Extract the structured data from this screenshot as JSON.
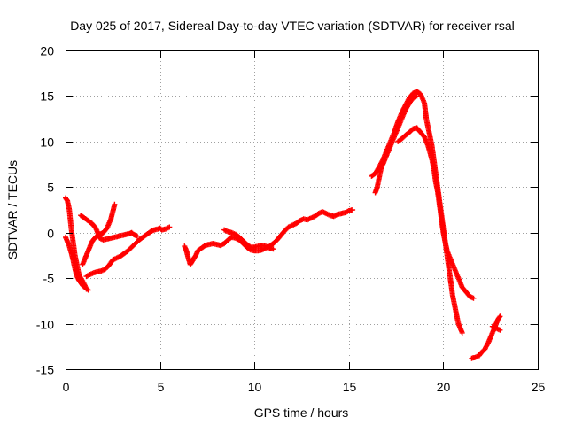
{
  "chart_data": {
    "type": "scatter",
    "title": "Day 025 of 2017, Sidereal Day-to-day VTEC variation (SDTVAR) for receiver rsal",
    "xlabel": "GPS time / hours",
    "ylabel": "SDTVAR / TECUs",
    "xlim": [
      0,
      25
    ],
    "ylim": [
      -15,
      20
    ],
    "xticks": [
      0,
      5,
      10,
      15,
      20,
      25
    ],
    "yticks": [
      -15,
      -10,
      -5,
      0,
      5,
      10,
      15,
      20
    ],
    "grid": true,
    "legend": "none",
    "marker": "plus",
    "color": "#ff0000",
    "series": [
      {
        "points": [
          [
            0.0,
            3.8
          ],
          [
            0.1,
            3.5
          ],
          [
            0.2,
            2.5
          ],
          [
            0.3,
            0.5
          ],
          [
            0.4,
            -1.0
          ],
          [
            0.5,
            -2.5
          ],
          [
            0.6,
            -3.5
          ],
          [
            0.7,
            -4.5
          ],
          [
            0.8,
            -5.0
          ],
          [
            0.9,
            -5.3
          ],
          [
            1.0,
            -5.7
          ],
          [
            1.1,
            -6.2
          ]
        ]
      },
      {
        "points": [
          [
            0.0,
            -0.5
          ],
          [
            0.1,
            -1.0
          ],
          [
            0.2,
            -1.5
          ],
          [
            0.3,
            -2.2
          ],
          [
            0.4,
            -3.0
          ],
          [
            0.5,
            -4.0
          ],
          [
            0.6,
            -4.8
          ],
          [
            0.7,
            -5.2
          ],
          [
            0.8,
            -5.5
          ],
          [
            0.9,
            -5.8
          ],
          [
            1.0,
            -6.0
          ],
          [
            1.1,
            -6.1
          ],
          [
            1.2,
            -6.3
          ]
        ]
      },
      {
        "points": [
          [
            0.9,
            -3.5
          ],
          [
            1.0,
            -3.0
          ],
          [
            1.1,
            -2.5
          ],
          [
            1.2,
            -2.0
          ],
          [
            1.3,
            -1.5
          ],
          [
            1.4,
            -1.0
          ],
          [
            1.5,
            -0.7
          ],
          [
            1.6,
            -0.5
          ],
          [
            1.7,
            -0.3
          ],
          [
            1.8,
            -0.2
          ],
          [
            1.9,
            -0.1
          ],
          [
            2.0,
            0.0
          ],
          [
            2.2,
            0.5
          ],
          [
            2.4,
            1.5
          ],
          [
            2.5,
            2.3
          ],
          [
            2.6,
            3.1
          ]
        ]
      },
      {
        "points": [
          [
            0.8,
            1.9
          ],
          [
            1.0,
            1.6
          ],
          [
            1.2,
            1.3
          ],
          [
            1.4,
            1.0
          ],
          [
            1.6,
            0.5
          ],
          [
            1.7,
            0.0
          ],
          [
            1.8,
            -0.6
          ],
          [
            2.0,
            -0.8
          ],
          [
            2.2,
            -0.7
          ],
          [
            2.4,
            -0.6
          ],
          [
            2.6,
            -0.5
          ],
          [
            2.8,
            -0.4
          ],
          [
            3.0,
            -0.3
          ],
          [
            3.2,
            -0.2
          ],
          [
            3.4,
            -0.1
          ],
          [
            3.5,
            0.0
          ],
          [
            3.6,
            -0.2
          ],
          [
            3.7,
            -0.3
          ],
          [
            3.8,
            -0.4
          ]
        ]
      },
      {
        "points": [
          [
            1.1,
            -4.8
          ],
          [
            1.3,
            -4.6
          ],
          [
            1.5,
            -4.4
          ],
          [
            1.7,
            -4.3
          ],
          [
            1.9,
            -4.2
          ],
          [
            2.1,
            -4.0
          ],
          [
            2.3,
            -3.6
          ],
          [
            2.5,
            -3.0
          ],
          [
            2.7,
            -2.8
          ],
          [
            2.9,
            -2.6
          ],
          [
            3.1,
            -2.3
          ],
          [
            3.3,
            -2.0
          ],
          [
            3.5,
            -1.6
          ],
          [
            3.7,
            -1.2
          ],
          [
            3.9,
            -0.8
          ],
          [
            4.1,
            -0.5
          ],
          [
            4.3,
            -0.2
          ],
          [
            4.5,
            0.1
          ],
          [
            4.7,
            0.3
          ],
          [
            4.9,
            0.4
          ],
          [
            5.0,
            0.5
          ],
          [
            5.1,
            0.3
          ],
          [
            5.3,
            0.4
          ],
          [
            5.5,
            0.6
          ]
        ]
      },
      {
        "points": [
          [
            6.3,
            -1.5
          ],
          [
            6.4,
            -2.0
          ],
          [
            6.5,
            -2.8
          ],
          [
            6.6,
            -3.5
          ],
          [
            6.7,
            -3.2
          ],
          [
            6.8,
            -2.8
          ],
          [
            6.9,
            -2.5
          ],
          [
            7.0,
            -2.0
          ],
          [
            7.2,
            -1.7
          ],
          [
            7.4,
            -1.4
          ],
          [
            7.6,
            -1.3
          ],
          [
            7.8,
            -1.2
          ],
          [
            8.0,
            -1.3
          ],
          [
            8.2,
            -1.4
          ],
          [
            8.4,
            -1.2
          ],
          [
            8.6,
            -0.8
          ],
          [
            8.8,
            -0.5
          ],
          [
            9.0,
            -0.6
          ],
          [
            9.2,
            -0.8
          ],
          [
            9.4,
            -1.2
          ],
          [
            9.6,
            -1.6
          ],
          [
            9.8,
            -1.9
          ],
          [
            10.0,
            -2.0
          ],
          [
            10.2,
            -2.0
          ],
          [
            10.4,
            -1.9
          ],
          [
            10.6,
            -1.7
          ],
          [
            10.8,
            -1.5
          ],
          [
            11.0,
            -1.2
          ],
          [
            11.2,
            -0.8
          ],
          [
            11.4,
            -0.3
          ],
          [
            11.6,
            0.2
          ],
          [
            11.8,
            0.6
          ],
          [
            12.0,
            0.8
          ],
          [
            12.2,
            1.0
          ],
          [
            12.4,
            1.3
          ],
          [
            12.6,
            1.5
          ],
          [
            12.8,
            1.4
          ],
          [
            13.0,
            1.6
          ],
          [
            13.2,
            1.8
          ],
          [
            13.4,
            2.1
          ],
          [
            13.6,
            2.3
          ],
          [
            13.8,
            2.1
          ],
          [
            14.0,
            1.9
          ],
          [
            14.2,
            1.8
          ],
          [
            14.4,
            2.0
          ],
          [
            14.6,
            2.1
          ],
          [
            14.8,
            2.2
          ],
          [
            15.0,
            2.4
          ],
          [
            15.2,
            2.5
          ]
        ]
      },
      {
        "points": [
          [
            8.4,
            0.3
          ],
          [
            8.6,
            0.1
          ],
          [
            8.8,
            0.0
          ],
          [
            9.0,
            -0.2
          ],
          [
            9.2,
            -0.5
          ],
          [
            9.4,
            -0.9
          ],
          [
            9.6,
            -1.3
          ],
          [
            9.8,
            -1.6
          ],
          [
            10.0,
            -1.6
          ],
          [
            10.2,
            -1.5
          ],
          [
            10.4,
            -1.4
          ],
          [
            10.6,
            -1.5
          ],
          [
            10.8,
            -1.7
          ],
          [
            11.0,
            -1.8
          ]
        ]
      },
      {
        "points": [
          [
            16.2,
            6.2
          ],
          [
            16.4,
            6.5
          ],
          [
            16.6,
            7.2
          ],
          [
            16.8,
            8.0
          ],
          [
            17.0,
            9.0
          ],
          [
            17.2,
            10.0
          ],
          [
            17.4,
            11.0
          ],
          [
            17.6,
            12.2
          ],
          [
            17.8,
            13.2
          ],
          [
            18.0,
            14.0
          ],
          [
            18.2,
            14.8
          ],
          [
            18.4,
            15.3
          ],
          [
            18.6,
            15.5
          ],
          [
            18.8,
            15.2
          ],
          [
            19.0,
            14.2
          ],
          [
            19.1,
            12.5
          ],
          [
            19.2,
            11.5
          ],
          [
            19.3,
            10.5
          ],
          [
            19.4,
            9.5
          ],
          [
            19.5,
            8.0
          ],
          [
            19.6,
            6.5
          ],
          [
            19.7,
            5.0
          ],
          [
            19.8,
            3.5
          ],
          [
            19.9,
            2.0
          ],
          [
            20.0,
            0.5
          ],
          [
            20.1,
            -1.0
          ],
          [
            20.2,
            -2.5
          ],
          [
            20.3,
            -4.0
          ],
          [
            20.4,
            -5.5
          ],
          [
            20.5,
            -7.0
          ],
          [
            20.6,
            -8.0
          ],
          [
            20.7,
            -9.0
          ],
          [
            20.8,
            -10.0
          ],
          [
            20.9,
            -10.5
          ],
          [
            21.0,
            -11.0
          ]
        ]
      },
      {
        "points": [
          [
            16.4,
            4.4
          ],
          [
            16.5,
            5.0
          ],
          [
            16.6,
            6.0
          ],
          [
            16.7,
            7.0
          ],
          [
            16.8,
            7.5
          ],
          [
            16.9,
            8.0
          ],
          [
            17.0,
            8.5
          ],
          [
            17.2,
            9.5
          ],
          [
            17.4,
            10.5
          ],
          [
            17.6,
            11.5
          ],
          [
            17.8,
            12.5
          ],
          [
            18.0,
            13.5
          ],
          [
            18.2,
            14.2
          ],
          [
            18.4,
            14.8
          ],
          [
            18.6,
            15.0
          ]
        ]
      },
      {
        "points": [
          [
            17.6,
            10.0
          ],
          [
            17.8,
            10.3
          ],
          [
            18.0,
            10.7
          ],
          [
            18.2,
            11.0
          ],
          [
            18.4,
            11.4
          ],
          [
            18.6,
            11.5
          ],
          [
            18.8,
            11.0
          ],
          [
            19.0,
            10.5
          ],
          [
            19.2,
            9.5
          ],
          [
            19.4,
            8.0
          ],
          [
            19.5,
            7.0
          ],
          [
            19.6,
            5.5
          ],
          [
            19.7,
            4.5
          ],
          [
            19.8,
            3.0
          ],
          [
            19.9,
            1.5
          ],
          [
            20.0,
            0.0
          ],
          [
            20.1,
            -1.0
          ],
          [
            20.2,
            -2.0
          ],
          [
            20.4,
            -3.0
          ],
          [
            20.6,
            -4.0
          ],
          [
            20.8,
            -5.0
          ],
          [
            21.0,
            -6.0
          ],
          [
            21.2,
            -6.5
          ],
          [
            21.4,
            -7.0
          ],
          [
            21.6,
            -7.2
          ]
        ]
      },
      {
        "points": [
          [
            21.5,
            -13.8
          ],
          [
            21.7,
            -13.7
          ],
          [
            21.9,
            -13.5
          ],
          [
            22.0,
            -13.2
          ],
          [
            22.2,
            -12.8
          ],
          [
            22.3,
            -12.4
          ],
          [
            22.4,
            -12.0
          ],
          [
            22.5,
            -11.5
          ],
          [
            22.6,
            -11.0
          ],
          [
            22.7,
            -10.5
          ],
          [
            22.8,
            -10.0
          ],
          [
            22.9,
            -9.5
          ],
          [
            23.0,
            -9.2
          ]
        ]
      },
      {
        "points": [
          [
            22.6,
            -10.3
          ],
          [
            22.8,
            -10.5
          ],
          [
            23.0,
            -10.7
          ]
        ]
      }
    ]
  }
}
